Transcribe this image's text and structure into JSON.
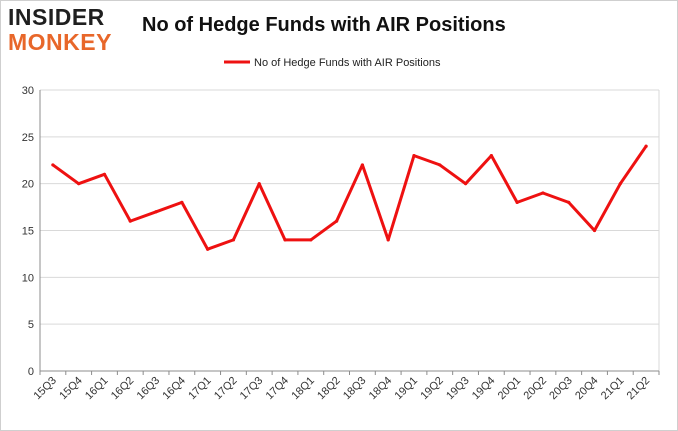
{
  "logo": {
    "line1": "INSIDER",
    "line2": "MONKEY"
  },
  "colors": {
    "series": "#ee1111",
    "grid": "#d9d9d9",
    "axis": "#8c8c8c",
    "logo_accent": "#e8672a"
  },
  "chart_data": {
    "type": "line",
    "title": "No of Hedge Funds with AIR Positions",
    "xlabel": "",
    "ylabel": "",
    "ylim": [
      0,
      30
    ],
    "yticks": [
      0,
      5,
      10,
      15,
      20,
      25,
      30
    ],
    "grid": true,
    "legend_position": "top-center",
    "categories": [
      "15Q3",
      "15Q4",
      "16Q1",
      "16Q2",
      "16Q3",
      "16Q4",
      "17Q1",
      "17Q2",
      "17Q3",
      "17Q4",
      "18Q1",
      "18Q2",
      "18Q3",
      "18Q4",
      "19Q1",
      "19Q2",
      "19Q3",
      "19Q4",
      "20Q1",
      "20Q2",
      "20Q3",
      "20Q4",
      "21Q1",
      "21Q2"
    ],
    "series": [
      {
        "name": "No of Hedge Funds with AIR Positions",
        "values": [
          22,
          20,
          21,
          16,
          17,
          18,
          13,
          14,
          20,
          14,
          14,
          16,
          22,
          14,
          23,
          22,
          20,
          23,
          18,
          19,
          18,
          15,
          20,
          24
        ]
      }
    ]
  }
}
